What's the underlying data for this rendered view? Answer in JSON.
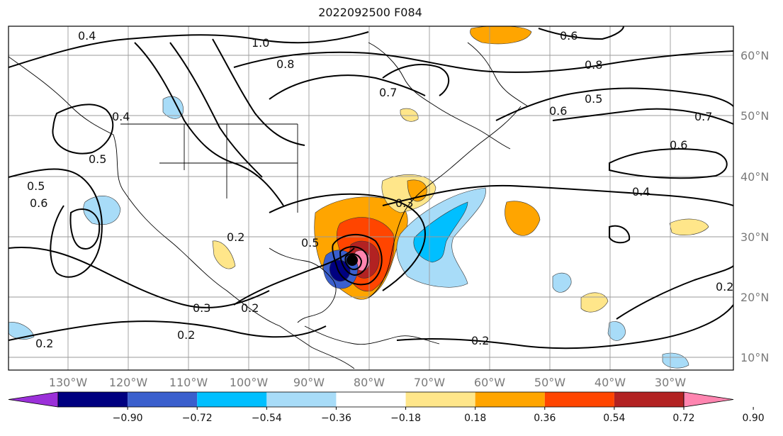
{
  "title": "2022092500 F084",
  "map": {
    "lon_labels": [
      "130°W",
      "120°W",
      "110°W",
      "100°W",
      "90°W",
      "80°W",
      "70°W",
      "60°W",
      "50°W",
      "40°W",
      "30°W"
    ],
    "lat_labels": [
      "60°N",
      "50°N",
      "40°N",
      "30°N",
      "20°N",
      "10°N"
    ],
    "contour_labels": [
      "0.4",
      "1.0",
      "0.8",
      "0.6",
      "0.7",
      "0.8",
      "0.5",
      "0.6",
      "0.7",
      "0.6",
      "0.4",
      "0.4",
      "0.5",
      "0.6",
      "0.5",
      "0.3",
      "0.5",
      "0.2",
      "0.3",
      "0.2",
      "0.2",
      "0.2",
      "0.2",
      "0.2"
    ]
  },
  "colorbar": {
    "ticks": [
      "−0.90",
      "−0.72",
      "−0.54",
      "−0.36",
      "−0.18",
      "0.18",
      "0.36",
      "0.54",
      "0.72",
      "0.90"
    ],
    "colors": [
      "#9b30d9",
      "#000080",
      "#3a5fcd",
      "#00bfff",
      "#a8dcf8",
      "#ffffff",
      "#ffe68a",
      "#ffa500",
      "#ff4500",
      "#b22222",
      "#ff85b0"
    ]
  },
  "storm_marker": "black-dot"
}
